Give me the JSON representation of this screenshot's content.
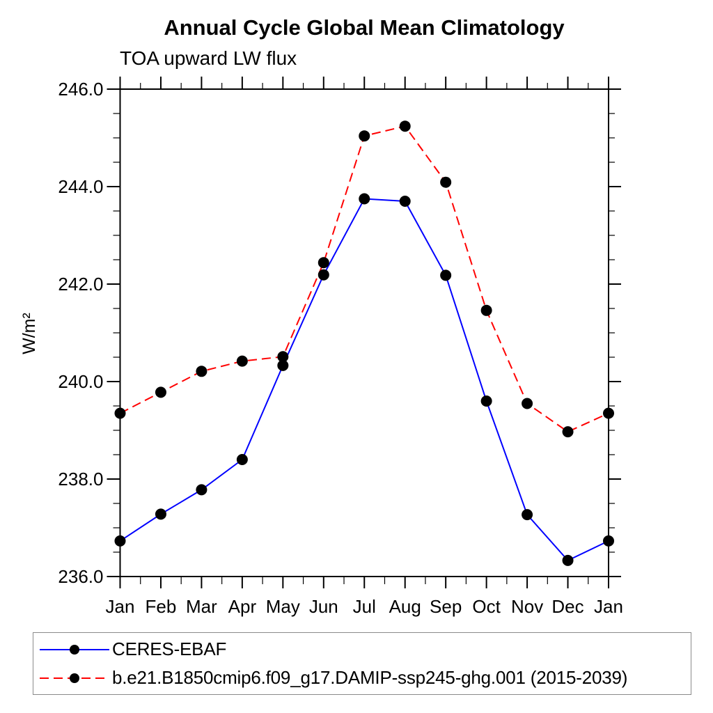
{
  "chart_data": {
    "type": "line",
    "title": "Annual Cycle Global Mean Climatology",
    "subtitle": "TOA upward LW flux",
    "ylabel": "W/m²",
    "x_categories": [
      "Jan",
      "Feb",
      "Mar",
      "Apr",
      "May",
      "Jun",
      "Jul",
      "Aug",
      "Sep",
      "Oct",
      "Nov",
      "Dec",
      "Jan"
    ],
    "ylim": [
      236.0,
      246.0
    ],
    "y_major_ticks": [
      236.0,
      238.0,
      240.0,
      242.0,
      244.0,
      246.0
    ],
    "y_minor_step": 0.5,
    "x_minor_at_midpoints": true,
    "y_tick_decimals": 1,
    "grid": false,
    "frame": "box-with-outward-ticks",
    "legend_position": "bottom-box",
    "text_color": "#000000",
    "axis_color": "#000000",
    "series": [
      {
        "name": "CERES-EBAF",
        "color": "#0000ff",
        "line_style": "solid",
        "line_width": 2,
        "marker": "filled-circle",
        "marker_color": "#000000",
        "marker_radius": 8,
        "values": [
          236.73,
          237.28,
          237.78,
          238.4,
          240.33,
          242.19,
          243.75,
          243.7,
          242.18,
          239.6,
          237.27,
          236.33,
          236.73
        ]
      },
      {
        "name": "b.e21.B1850cmip6.f09_g17.DAMIP-ssp245-ghg.001 (2015-2039)",
        "color": "#ff0000",
        "line_style": "dashed",
        "line_width": 2,
        "marker": "filled-circle",
        "marker_color": "#000000",
        "marker_radius": 8,
        "values": [
          239.35,
          239.78,
          240.21,
          240.42,
          240.51,
          242.44,
          245.04,
          245.24,
          244.09,
          241.46,
          239.55,
          238.97,
          239.35
        ]
      }
    ]
  }
}
